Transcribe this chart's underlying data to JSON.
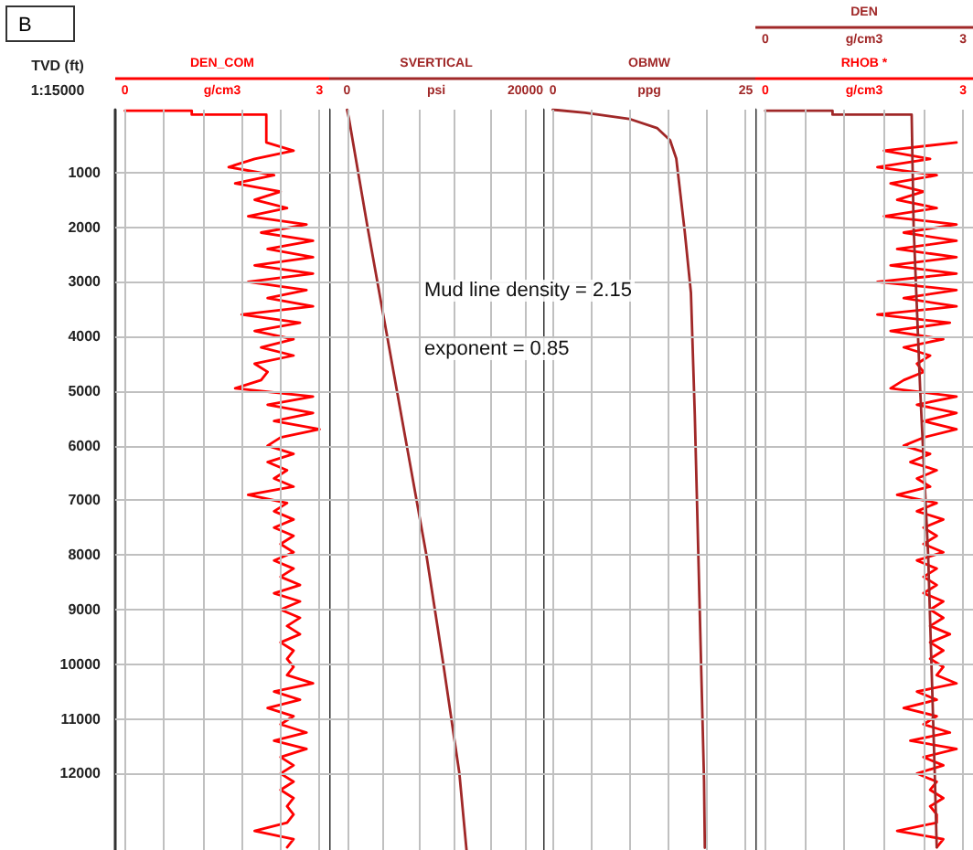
{
  "chart_data": [
    {
      "type": "line",
      "orientation": "horizontal",
      "ylabel": "TVD (ft)",
      "annotations": [
        "B",
        "1:15000"
      ],
      "legend": "top",
      "grid": true,
      "line_style": "solid",
      "xlim": [
        -0.15,
        3.15
      ],
      "xticks": [
        0,
        {
          "value": 0.6,
          "label": null
        },
        {
          "value": 1.2,
          "label": null
        },
        {
          "value": 1.8,
          "label": null
        },
        {
          "value": 2.4,
          "label": null
        },
        3
      ],
      "xlabel": "g/cm3",
      "ylim": [
        13400,
        -150
      ],
      "yticks": [
        1000,
        2000,
        3000,
        4000,
        5000,
        6000,
        7000,
        8000,
        9000,
        10000,
        11000,
        12000
      ],
      "series": [
        {
          "name": "DEN_COM",
          "color": "#ff0000",
          "x": [
            -130,
            -130,
            -60,
            -60,
            450,
            600,
            750,
            900,
            1050,
            1200,
            1350,
            1500,
            1650,
            1800,
            1950,
            2100,
            2250,
            2400,
            2550,
            2700,
            2850,
            3000,
            3150,
            3300,
            3450,
            3600,
            3750,
            3900,
            4050,
            4200,
            4350,
            4500,
            4650,
            4800,
            4950,
            5100,
            5250,
            5400,
            5550,
            5700,
            5850,
            6000,
            6150,
            6300,
            6450,
            6600,
            6750,
            6900,
            7050,
            7200,
            7350,
            7500,
            7650,
            7800,
            7950,
            8100,
            8250,
            8400,
            8550,
            8700,
            8850,
            9000,
            9150,
            9300,
            9450,
            9600,
            9750,
            9900,
            10050,
            10200,
            10350,
            10500,
            10650,
            10800,
            10950,
            11100,
            11250,
            11400,
            11550,
            11700,
            11850,
            12000,
            12150,
            12300,
            12450,
            12600,
            12750,
            12900,
            13050,
            13200,
            13350
          ],
          "values": [
            0,
            1.03,
            1.03,
            2.18,
            2.18,
            2.6,
            2.0,
            1.6,
            2.3,
            1.7,
            2.4,
            2.0,
            2.5,
            1.9,
            2.8,
            2.1,
            2.9,
            2.2,
            2.9,
            2.0,
            2.9,
            1.9,
            2.8,
            2.2,
            2.9,
            1.8,
            2.7,
            2.0,
            2.6,
            2.1,
            2.6,
            2.0,
            2.2,
            2.1,
            1.7,
            2.9,
            2.2,
            2.9,
            2.3,
            3.0,
            2.4,
            2.2,
            2.6,
            2.2,
            2.5,
            2.3,
            2.6,
            1.9,
            2.5,
            2.3,
            2.6,
            2.3,
            2.6,
            2.4,
            2.6,
            2.3,
            2.6,
            2.4,
            2.7,
            2.3,
            2.7,
            2.4,
            2.7,
            2.5,
            2.7,
            2.4,
            2.6,
            2.5,
            2.6,
            2.5,
            2.9,
            2.3,
            2.7,
            2.2,
            2.6,
            2.4,
            2.8,
            2.3,
            2.8,
            2.4,
            2.6,
            2.4,
            2.6,
            2.4,
            2.6,
            2.5,
            2.6,
            2.5,
            2.0,
            2.6,
            2.5
          ]
        }
      ]
    },
    {
      "type": "line",
      "orientation": "horizontal",
      "annotations": [
        "Mud line density = 2.15",
        "exponent = 0.85"
      ],
      "legend": "top",
      "grid": true,
      "line_style": "solid",
      "tick_labels": "x",
      "xlim": [
        -2000,
        22000
      ],
      "xticks": [
        0,
        {
          "value": 4000,
          "label": null
        },
        {
          "value": 8000,
          "label": null
        },
        {
          "value": 12000,
          "label": null
        },
        {
          "value": 16000,
          "label": null
        },
        20000
      ],
      "xlabel": "psi",
      "ylim": [
        13400,
        -150
      ],
      "yticks": [
        1000,
        2000,
        3000,
        4000,
        5000,
        6000,
        7000,
        8000,
        9000,
        10000,
        11000,
        12000
      ],
      "series": [
        {
          "name": "SVERTICAL",
          "color": "#a02828",
          "x": [
            -150,
            0,
            2000,
            4000,
            6000,
            8000,
            10000,
            12000,
            13400
          ],
          "values": [
            0,
            200,
            2300,
            4500,
            6700,
            8900,
            10800,
            12600,
            13400
          ]
        }
      ]
    },
    {
      "type": "line",
      "orientation": "horizontal",
      "legend": "top",
      "grid": true,
      "line_style": "solid",
      "tick_labels": "x",
      "xlim": [
        -1.25,
        26.25
      ],
      "xticks": [
        0,
        {
          "value": 5,
          "label": null
        },
        {
          "value": 10,
          "label": null
        },
        {
          "value": 15,
          "label": null
        },
        {
          "value": 20,
          "label": null
        },
        25
      ],
      "xlabel": "ppg",
      "ylim": [
        13400,
        -150
      ],
      "yticks": [
        1000,
        2000,
        3000,
        4000,
        5000,
        6000,
        7000,
        8000,
        9000,
        10000,
        11000,
        12000
      ],
      "series": [
        {
          "name": "OBMW",
          "color": "#a02828",
          "x": [
            -150,
            -92,
            18,
            186,
            410,
            745,
            2085,
            3200,
            5435,
            8785,
            12135,
            13360
          ],
          "values": [
            0,
            4.2,
            9.9,
            13.5,
            15.2,
            16,
            17.1,
            17.9,
            18.4,
            19,
            19.6,
            19.7
          ]
        }
      ]
    },
    {
      "type": "line",
      "orientation": "horizontal",
      "legend": "top",
      "grid": true,
      "line_style": "solid",
      "tick_labels": "x",
      "xlim": [
        -0.15,
        3.15
      ],
      "xticks": [
        0,
        {
          "value": 0.6,
          "label": null
        },
        {
          "value": 1.2,
          "label": null
        },
        {
          "value": 1.8,
          "label": null
        },
        {
          "value": 2.4,
          "label": null
        },
        3
      ],
      "xlabel": "g/cm3",
      "x2lim": [
        -0.15,
        3.15
      ],
      "x2ticks": [
        0,
        3
      ],
      "x2label": "g/cm3",
      "ylim": [
        13400,
        -150
      ],
      "yticks": [
        1000,
        2000,
        3000,
        4000,
        5000,
        6000,
        7000,
        8000,
        9000,
        10000,
        11000,
        12000
      ],
      "series": [
        {
          "name": "RHOB *",
          "color": "#ff0000",
          "x": [
            450,
            600,
            750,
            900,
            1050,
            1200,
            1350,
            1500,
            1650,
            1800,
            1950,
            2100,
            2250,
            2400,
            2550,
            2700,
            2850,
            3000,
            3150,
            3300,
            3450,
            3600,
            3750,
            3900,
            4050,
            4200,
            4350,
            4500,
            4650,
            4800,
            4950,
            5100,
            5250,
            5400,
            5550,
            5700,
            5850,
            6000,
            6150,
            6300,
            6450,
            6600,
            6750,
            6900,
            7050,
            7200,
            7350,
            7500,
            7650,
            7800,
            7950,
            8100,
            8250,
            8400,
            8550,
            8700,
            8850,
            9000,
            9150,
            9300,
            9450,
            9600,
            9750,
            9900,
            10050,
            10200,
            10350,
            10500,
            10650,
            10800,
            10950,
            11100,
            11250,
            11400,
            11550,
            11700,
            11850,
            12000,
            12150,
            12300,
            12450,
            12600,
            12750,
            12900,
            13050,
            13200,
            13350
          ],
          "values": [
            2.9,
            1.8,
            2.5,
            1.7,
            2.6,
            1.9,
            2.4,
            2.0,
            2.6,
            1.8,
            2.9,
            2.1,
            2.9,
            2.0,
            2.9,
            1.9,
            2.9,
            1.7,
            2.9,
            2.1,
            2.9,
            1.7,
            2.8,
            1.9,
            2.7,
            2.1,
            2.5,
            2.3,
            2.4,
            2.1,
            1.9,
            2.9,
            2.3,
            2.9,
            2.4,
            2.9,
            2.4,
            2.1,
            2.5,
            2.2,
            2.6,
            2.3,
            2.5,
            2.0,
            2.6,
            2.3,
            2.7,
            2.4,
            2.6,
            2.4,
            2.7,
            2.3,
            2.6,
            2.4,
            2.6,
            2.4,
            2.7,
            2.5,
            2.7,
            2.5,
            2.8,
            2.5,
            2.7,
            2.5,
            2.7,
            2.6,
            2.9,
            2.3,
            2.6,
            2.1,
            2.6,
            2.4,
            2.8,
            2.2,
            2.9,
            2.4,
            2.7,
            2.3,
            2.6,
            2.5,
            2.7,
            2.5,
            2.6,
            2.6,
            2.0,
            2.7,
            2.6
          ]
        },
        {
          "name": "DEN",
          "color": "#a02828",
          "axis": "x2",
          "x": [
            -130,
            -130,
            -60,
            -60,
            2000,
            5000,
            8000,
            10000,
            12000,
            13350
          ],
          "values": [
            0,
            1.02,
            1.02,
            2.22,
            2.25,
            2.35,
            2.47,
            2.52,
            2.57,
            2.6
          ]
        }
      ]
    }
  ]
}
